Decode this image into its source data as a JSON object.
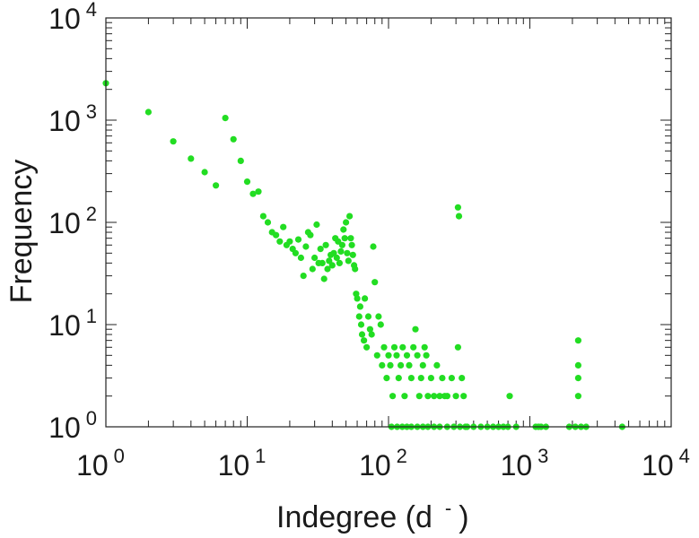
{
  "chart_data": {
    "type": "scatter",
    "scale": "log-log",
    "xlabel": "Indegree (d",
    "xlabel_suffix": ")",
    "xlabel_superscript": "-",
    "ylabel": "Frequency",
    "xlim": [
      1,
      10000
    ],
    "ylim": [
      1,
      10000
    ],
    "x_ticks": [
      {
        "value": 1,
        "base": "10",
        "exp": "0"
      },
      {
        "value": 10,
        "base": "10",
        "exp": "1"
      },
      {
        "value": 100,
        "base": "10",
        "exp": "2"
      },
      {
        "value": 1000,
        "base": "10",
        "exp": "3"
      },
      {
        "value": 10000,
        "base": "10",
        "exp": "4"
      }
    ],
    "y_ticks": [
      {
        "value": 1,
        "base": "10",
        "exp": "0"
      },
      {
        "value": 10,
        "base": "10",
        "exp": "1"
      },
      {
        "value": 100,
        "base": "10",
        "exp": "2"
      },
      {
        "value": 1000,
        "base": "10",
        "exp": "3"
      },
      {
        "value": 10000,
        "base": "10",
        "exp": "4"
      }
    ],
    "marker_color": "#22dd22",
    "points": [
      [
        1,
        2300
      ],
      [
        2,
        1200
      ],
      [
        3,
        620
      ],
      [
        4,
        420
      ],
      [
        5,
        310
      ],
      [
        6,
        230
      ],
      [
        7,
        1050
      ],
      [
        8,
        650
      ],
      [
        9,
        400
      ],
      [
        10,
        250
      ],
      [
        11,
        190
      ],
      [
        12,
        200
      ],
      [
        13,
        115
      ],
      [
        14,
        100
      ],
      [
        15,
        80
      ],
      [
        16,
        75
      ],
      [
        17,
        65
      ],
      [
        18,
        90
      ],
      [
        19,
        60
      ],
      [
        20,
        65
      ],
      [
        21,
        55
      ],
      [
        22,
        50
      ],
      [
        23,
        68
      ],
      [
        24,
        45
      ],
      [
        25,
        30
      ],
      [
        26,
        58
      ],
      [
        27,
        80
      ],
      [
        28,
        75
      ],
      [
        29,
        35
      ],
      [
        30,
        45
      ],
      [
        31,
        95
      ],
      [
        32,
        40
      ],
      [
        33,
        55
      ],
      [
        34,
        40
      ],
      [
        35,
        28
      ],
      [
        36,
        60
      ],
      [
        37,
        35
      ],
      [
        38,
        42
      ],
      [
        39,
        48
      ],
      [
        40,
        38
      ],
      [
        41,
        50
      ],
      [
        42,
        70
      ],
      [
        43,
        45
      ],
      [
        44,
        65
      ],
      [
        45,
        40
      ],
      [
        46,
        52
      ],
      [
        47,
        60
      ],
      [
        48,
        85
      ],
      [
        49,
        70
      ],
      [
        50,
        100
      ],
      [
        51,
        50
      ],
      [
        52,
        42
      ],
      [
        53,
        115
      ],
      [
        54,
        70
      ],
      [
        55,
        60
      ],
      [
        56,
        48
      ],
      [
        57,
        38
      ],
      [
        58,
        35
      ],
      [
        59,
        20
      ],
      [
        60,
        18
      ],
      [
        62,
        12
      ],
      [
        63,
        15
      ],
      [
        64,
        10
      ],
      [
        65,
        8
      ],
      [
        67,
        7
      ],
      [
        68,
        18
      ],
      [
        70,
        6
      ],
      [
        72,
        12
      ],
      [
        74,
        9
      ],
      [
        76,
        8
      ],
      [
        78,
        58
      ],
      [
        80,
        26
      ],
      [
        83,
        5
      ],
      [
        85,
        12
      ],
      [
        88,
        10
      ],
      [
        90,
        4
      ],
      [
        93,
        6
      ],
      [
        97,
        3
      ],
      [
        100,
        5
      ],
      [
        103,
        4
      ],
      [
        107,
        2
      ],
      [
        110,
        6
      ],
      [
        114,
        5
      ],
      [
        118,
        3
      ],
      [
        122,
        4
      ],
      [
        126,
        6
      ],
      [
        130,
        2
      ],
      [
        135,
        5
      ],
      [
        140,
        4
      ],
      [
        145,
        3
      ],
      [
        150,
        6
      ],
      [
        155,
        9
      ],
      [
        160,
        5
      ],
      [
        165,
        2
      ],
      [
        170,
        3
      ],
      [
        175,
        4
      ],
      [
        180,
        6
      ],
      [
        185,
        5
      ],
      [
        190,
        2
      ],
      [
        200,
        3
      ],
      [
        210,
        2
      ],
      [
        220,
        4
      ],
      [
        230,
        2
      ],
      [
        240,
        3
      ],
      [
        250,
        2
      ],
      [
        260,
        2
      ],
      [
        280,
        3
      ],
      [
        300,
        2
      ],
      [
        310,
        6
      ],
      [
        310,
        140
      ],
      [
        315,
        115
      ],
      [
        330,
        3
      ],
      [
        340,
        2
      ],
      [
        350,
        1
      ],
      [
        360,
        1
      ],
      [
        400,
        1
      ],
      [
        450,
        1
      ],
      [
        500,
        1
      ],
      [
        550,
        1
      ],
      [
        600,
        1
      ],
      [
        650,
        1
      ],
      [
        700,
        1
      ],
      [
        720,
        2
      ],
      [
        800,
        1
      ],
      [
        1100,
        1
      ],
      [
        1150,
        1
      ],
      [
        1200,
        1
      ],
      [
        1300,
        1
      ],
      [
        1900,
        1
      ],
      [
        2100,
        1
      ],
      [
        2200,
        7
      ],
      [
        2200,
        4
      ],
      [
        2200,
        3
      ],
      [
        2200,
        2
      ],
      [
        2300,
        1
      ],
      [
        2500,
        1
      ],
      [
        4500,
        1
      ],
      [
        105,
        1
      ],
      [
        115,
        1
      ],
      [
        125,
        1
      ],
      [
        135,
        1
      ],
      [
        145,
        1
      ],
      [
        160,
        1
      ],
      [
        175,
        1
      ],
      [
        190,
        1
      ],
      [
        210,
        1
      ],
      [
        230,
        1
      ],
      [
        260,
        1
      ],
      [
        290,
        1
      ],
      [
        320,
        1
      ]
    ]
  }
}
